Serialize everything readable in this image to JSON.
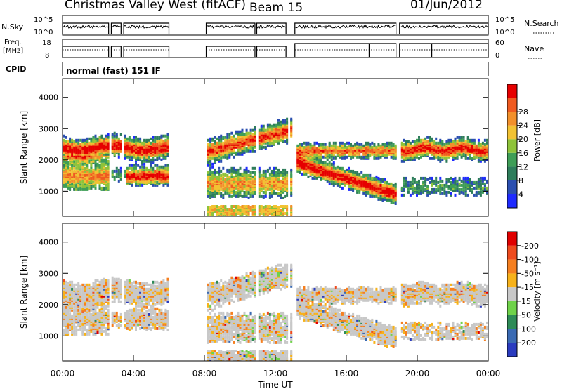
{
  "header": {
    "title": "Christmas Valley West (fitACF)",
    "beam": "Beam 15",
    "date": "01/Jun/2012"
  },
  "panels": {
    "nsky": {
      "label": "N.Sky",
      "ticks": [
        "10^5",
        "10^0"
      ],
      "right_ticks": [
        "10^5",
        "10^0"
      ],
      "right_label": "N.Search"
    },
    "freq": {
      "label_line1": "Freq.",
      "label_line2": "[MHz]",
      "ticks": [
        "18",
        "8"
      ],
      "right_ticks": [
        "60",
        "0"
      ],
      "right_label": "Nave"
    },
    "cpid": {
      "label": "CPID",
      "mode": "normal (fast) 151 IF"
    }
  },
  "chart_data": [
    {
      "type": "heatmap",
      "name": "power",
      "ylabel": "Slant Range [km]",
      "y_ticks": [
        1000,
        2000,
        3000,
        4000
      ],
      "ylim": [
        200,
        4600
      ],
      "x_ticks": [
        "00:00",
        "04:00",
        "08:00",
        "12:00",
        "16:00",
        "20:00",
        "00:00"
      ],
      "xlim_hours": [
        0,
        24
      ],
      "colorbar": {
        "label": "Power [dB]",
        "ticks": [
          "4",
          "8",
          "12",
          "16",
          "20",
          "24",
          "28"
        ],
        "colors": [
          "#1f2bff",
          "#2b4fb0",
          "#2e7d5b",
          "#3f9e57",
          "#8ec33a",
          "#f2c232",
          "#f2902b",
          "#ef5a20",
          "#e60000"
        ]
      }
    },
    {
      "type": "heatmap",
      "name": "velocity",
      "ylabel": "Slant Range [km]",
      "y_ticks": [
        1000,
        2000,
        3000,
        4000
      ],
      "ylim": [
        200,
        4600
      ],
      "x_ticks": [
        "00:00",
        "04:00",
        "08:00",
        "12:00",
        "16:00",
        "20:00",
        "00:00"
      ],
      "xlabel": "Time UT",
      "colorbar": {
        "label": "Velocity [m s⁻¹]",
        "ticks": [
          "200",
          "100",
          "50",
          "15",
          "-15",
          "-50",
          "-100",
          "-200"
        ],
        "colors": [
          "#2a3bbf",
          "#3a6ab3",
          "#2e8b57",
          "#6fd24a",
          "#c8c8c8",
          "#f7b21a",
          "#f57f20",
          "#ee4b1e",
          "#e00000"
        ]
      }
    }
  ]
}
